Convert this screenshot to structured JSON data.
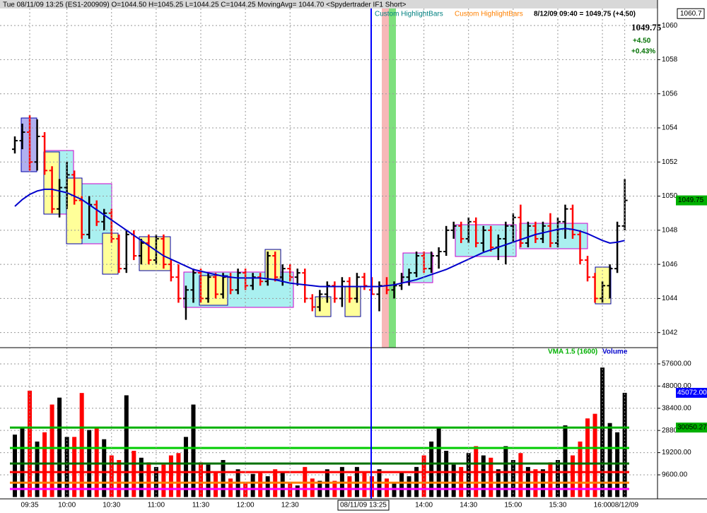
{
  "header": {
    "title": "Tue  08/11/09 13:25 (ES1-200909)  O=1044.50  H=1045.25  L=1044.25  C=1044.25  MovingAvg= 1044.70  <Spydertrader IF1 Short>",
    "indicators": [
      {
        "label": "Custom HighlightBars",
        "color": "#008080"
      },
      {
        "label": "Custom HighlightBars",
        "color": "#ff8000"
      }
    ],
    "quote": "8/12/09 09:40 = 1049.75 (+4.50)",
    "last": "1049.75",
    "change": "+4.50",
    "change_pct": "+0.43%"
  },
  "cursor_label": "08/11/09 13:25",
  "chart_data": [
    {
      "type": "ohlc",
      "up_color": "#000000",
      "down_color": "#ff0000",
      "ohlc": [
        [
          1052.75,
          1053.5,
          1052.5,
          1053.25
        ],
        [
          1053.25,
          1054.25,
          1052.75,
          1053.75
        ],
        [
          1053.75,
          1054.75,
          1051.5,
          1052.0
        ],
        [
          1052.0,
          1054.5,
          1051.5,
          1053.5
        ],
        [
          1053.5,
          1053.75,
          1051.25,
          1051.5
        ],
        [
          1051.5,
          1051.75,
          1049.0,
          1049.25
        ],
        [
          1049.25,
          1051.0,
          1048.75,
          1050.5
        ],
        [
          1050.5,
          1052.0,
          1049.25,
          1051.25
        ],
        [
          1051.25,
          1051.5,
          1049.5,
          1049.75
        ],
        [
          1049.75,
          1050.0,
          1047.5,
          1047.75
        ],
        [
          1047.75,
          1050.0,
          1047.5,
          1049.5
        ],
        [
          1049.5,
          1049.75,
          1048.25,
          1048.5
        ],
        [
          1048.5,
          1049.25,
          1048.0,
          1049.0
        ],
        [
          1049.0,
          1049.25,
          1047.25,
          1047.5
        ],
        [
          1047.5,
          1047.75,
          1045.5,
          1045.75
        ],
        [
          1045.75,
          1048.0,
          1045.5,
          1047.75
        ],
        [
          1047.75,
          1048.0,
          1046.25,
          1046.5
        ],
        [
          1046.5,
          1047.5,
          1046.0,
          1047.25
        ],
        [
          1047.25,
          1047.75,
          1046.0,
          1046.25
        ],
        [
          1046.25,
          1047.75,
          1046.0,
          1047.5
        ],
        [
          1047.5,
          1047.75,
          1045.75,
          1046.0
        ],
        [
          1046.0,
          1046.25,
          1045.0,
          1045.25
        ],
        [
          1045.25,
          1046.0,
          1043.75,
          1044.0
        ],
        [
          1044.0,
          1044.75,
          1042.75,
          1044.5
        ],
        [
          1044.5,
          1045.75,
          1043.75,
          1045.5
        ],
        [
          1045.5,
          1045.75,
          1043.75,
          1044.0
        ],
        [
          1044.0,
          1045.5,
          1043.75,
          1045.25
        ],
        [
          1045.25,
          1045.5,
          1044.0,
          1044.25
        ],
        [
          1044.25,
          1045.5,
          1044.0,
          1045.25
        ],
        [
          1045.25,
          1045.5,
          1044.25,
          1044.5
        ],
        [
          1044.5,
          1045.75,
          1044.25,
          1045.5
        ],
        [
          1045.5,
          1045.75,
          1044.5,
          1044.75
        ],
        [
          1044.75,
          1045.5,
          1044.5,
          1045.25
        ],
        [
          1045.25,
          1045.5,
          1044.75,
          1045.0
        ],
        [
          1045.0,
          1046.75,
          1044.75,
          1046.5
        ],
        [
          1046.5,
          1046.75,
          1045.0,
          1045.25
        ],
        [
          1045.25,
          1046.0,
          1044.75,
          1045.75
        ],
        [
          1045.75,
          1046.0,
          1045.0,
          1045.25
        ],
        [
          1045.25,
          1045.75,
          1044.75,
          1045.5
        ],
        [
          1045.5,
          1045.75,
          1043.75,
          1044.0
        ],
        [
          1044.0,
          1044.25,
          1043.25,
          1043.5
        ],
        [
          1043.5,
          1044.5,
          1043.25,
          1044.25
        ],
        [
          1044.25,
          1045.0,
          1043.75,
          1044.75
        ],
        [
          1044.75,
          1045.0,
          1043.75,
          1044.0
        ],
        [
          1044.0,
          1045.25,
          1043.5,
          1045.0
        ],
        [
          1045.0,
          1045.25,
          1043.75,
          1044.0
        ],
        [
          1044.0,
          1045.5,
          1043.75,
          1045.25
        ],
        [
          1045.25,
          1045.5,
          1044.5,
          1044.75
        ],
        [
          1044.5,
          1045.25,
          1044.25,
          1044.25
        ],
        [
          1044.25,
          1045.0,
          1043.25,
          1044.75
        ],
        [
          1044.75,
          1045.25,
          1044.25,
          1044.5
        ],
        [
          1044.5,
          1045.0,
          1044.0,
          1044.75
        ],
        [
          1044.75,
          1045.5,
          1044.5,
          1045.25
        ],
        [
          1045.25,
          1045.75,
          1044.75,
          1045.5
        ],
        [
          1045.5,
          1046.75,
          1045.25,
          1046.5
        ],
        [
          1046.5,
          1046.75,
          1045.5,
          1045.75
        ],
        [
          1045.75,
          1046.75,
          1045.5,
          1046.5
        ],
        [
          1046.5,
          1047.0,
          1045.75,
          1046.75
        ],
        [
          1046.75,
          1048.25,
          1046.5,
          1048.0
        ],
        [
          1048.0,
          1048.5,
          1047.5,
          1048.25
        ],
        [
          1048.25,
          1048.5,
          1047.25,
          1047.5
        ],
        [
          1047.5,
          1048.75,
          1047.25,
          1048.5
        ],
        [
          1048.5,
          1048.75,
          1047.0,
          1047.25
        ],
        [
          1047.25,
          1048.25,
          1046.75,
          1048.0
        ],
        [
          1048.0,
          1048.25,
          1046.75,
          1047.0
        ],
        [
          1047.0,
          1047.75,
          1046.25,
          1047.5
        ],
        [
          1047.5,
          1048.5,
          1046.0,
          1048.25
        ],
        [
          1048.25,
          1049.0,
          1047.25,
          1048.75
        ],
        [
          1048.75,
          1049.5,
          1047.0,
          1047.25
        ],
        [
          1047.25,
          1048.5,
          1047.0,
          1048.25
        ],
        [
          1048.25,
          1048.5,
          1047.25,
          1047.5
        ],
        [
          1047.5,
          1048.5,
          1047.25,
          1048.25
        ],
        [
          1048.25,
          1049.0,
          1047.0,
          1047.25
        ],
        [
          1047.25,
          1048.75,
          1047.0,
          1048.5
        ],
        [
          1048.5,
          1049.5,
          1047.5,
          1049.25
        ],
        [
          1049.25,
          1049.5,
          1047.5,
          1047.75
        ],
        [
          1047.75,
          1048.0,
          1046.0,
          1046.25
        ],
        [
          1046.25,
          1046.5,
          1045.0,
          1045.25
        ],
        [
          1045.25,
          1045.5,
          1043.75,
          1044.0
        ],
        [
          1044.0,
          1045.0,
          1043.75,
          1044.75
        ],
        [
          1044.75,
          1046.0,
          1044.0,
          1045.75
        ],
        [
          1045.75,
          1048.5,
          1045.5,
          1048.25
        ],
        [
          1048.25,
          1051.0,
          1048.0,
          1049.75
        ]
      ],
      "ma": {
        "color": "#0000cc",
        "values": [
          1049.4,
          1049.8,
          1050.1,
          1050.3,
          1050.4,
          1050.4,
          1050.3,
          1050.2,
          1050.0,
          1049.8,
          1049.5,
          1049.2,
          1048.9,
          1048.6,
          1048.3,
          1048.0,
          1047.7,
          1047.4,
          1047.1,
          1046.8,
          1046.5,
          1046.3,
          1046.1,
          1045.9,
          1045.7,
          1045.6,
          1045.5,
          1045.4,
          1045.3,
          1045.25,
          1045.2,
          1045.2,
          1045.2,
          1045.2,
          1045.15,
          1045.1,
          1045.0,
          1044.9,
          1044.85,
          1044.8,
          1044.75,
          1044.7,
          1044.7,
          1044.7,
          1044.7,
          1044.7,
          1044.7,
          1044.7,
          1044.7,
          1044.7,
          1044.75,
          1044.8,
          1044.9,
          1045.0,
          1045.1,
          1045.25,
          1045.4,
          1045.55,
          1045.7,
          1045.9,
          1046.1,
          1046.3,
          1046.5,
          1046.7,
          1046.85,
          1047.0,
          1047.15,
          1047.3,
          1047.45,
          1047.6,
          1047.75,
          1047.85,
          1047.95,
          1048.05,
          1048.1,
          1048.05,
          1047.95,
          1047.8,
          1047.6,
          1047.4,
          1047.25,
          1047.3,
          1047.4
        ]
      },
      "ylim": [
        1041.2,
        1061.0
      ],
      "yticks": [
        1042,
        1044,
        1046,
        1048,
        1050,
        1052,
        1054,
        1056,
        1058,
        1060
      ],
      "grid": true,
      "top_marker": 1060.7,
      "last_marker": 1049.75,
      "last_marker_color": "#00b000"
    },
    {
      "type": "bar",
      "title": "Volume",
      "title_color": "#0000cc",
      "subtitle": "VMA 1.5 (1600)",
      "subtitle_color": "#00b000",
      "categories": [
        null,
        null,
        "09:35",
        null,
        null,
        null,
        null,
        "10:00",
        null,
        null,
        null,
        null,
        null,
        "10:30",
        null,
        null,
        null,
        null,
        null,
        "11:00",
        null,
        null,
        null,
        null,
        null,
        "11:30",
        null,
        null,
        null,
        null,
        null,
        "12:00",
        null,
        null,
        null,
        null,
        null,
        "12:30",
        null,
        null,
        null,
        null,
        null,
        null,
        null,
        null,
        null,
        null,
        null,
        null,
        null,
        null,
        null,
        null,
        null,
        "14:00",
        null,
        null,
        null,
        null,
        null,
        "14:30",
        null,
        null,
        null,
        null,
        null,
        "15:00",
        null,
        null,
        null,
        null,
        null,
        "15:30",
        null,
        null,
        null,
        null,
        null,
        "16:00",
        null,
        null,
        "08/12/09"
      ],
      "values": [
        27000,
        30000,
        46000,
        24000,
        28000,
        40000,
        43000,
        26000,
        26000,
        45000,
        29000,
        30000,
        25000,
        18000,
        16000,
        44000,
        20000,
        17000,
        15000,
        13000,
        14000,
        18000,
        19000,
        26000,
        40000,
        15000,
        14000,
        11000,
        16000,
        8000,
        12000,
        6000,
        10000,
        11000,
        9000,
        12000,
        11000,
        6000,
        5000,
        13000,
        8000,
        7000,
        12000,
        7000,
        13000,
        9000,
        13000,
        11000,
        9000,
        12000,
        8000,
        6000,
        11000,
        9000,
        13000,
        18000,
        24000,
        30000,
        20000,
        14000,
        13000,
        19000,
        22000,
        18000,
        17000,
        12000,
        22000,
        16000,
        19000,
        13000,
        12000,
        12000,
        15000,
        16000,
        31000,
        18000,
        24000,
        34000,
        36000,
        56000,
        32000,
        28000,
        45072
      ],
      "ylim": [
        0,
        64000
      ],
      "yticks": [
        {
          "value": 9600,
          "label": "9600.00"
        },
        {
          "value": 19200,
          "label": "19200.00"
        },
        {
          "value": 28800,
          "label": "28800.00"
        },
        {
          "value": 38400,
          "label": "38400.00"
        },
        {
          "value": 48000,
          "label": "48000.00"
        },
        {
          "value": 57600,
          "label": "57600.00"
        }
      ],
      "grid": true,
      "reference_lines": [
        {
          "value": 30050.27,
          "color": "#00b000"
        },
        {
          "value": 21200,
          "color": "#00cc00"
        },
        {
          "value": 14500,
          "color": "#007000"
        },
        {
          "value": 10800,
          "color": "#ff0000"
        },
        {
          "value": 6200,
          "color": "#ff8000"
        },
        {
          "value": 3500,
          "color": "#ff00ff"
        }
      ],
      "last_marker": {
        "value": 45072,
        "label": "45072.00"
      },
      "last_marker_color": "#0000ff",
      "vma_marker": {
        "value": 30050.27,
        "label": "30050.27"
      },
      "vma_marker_color": "#00b000"
    }
  ]
}
